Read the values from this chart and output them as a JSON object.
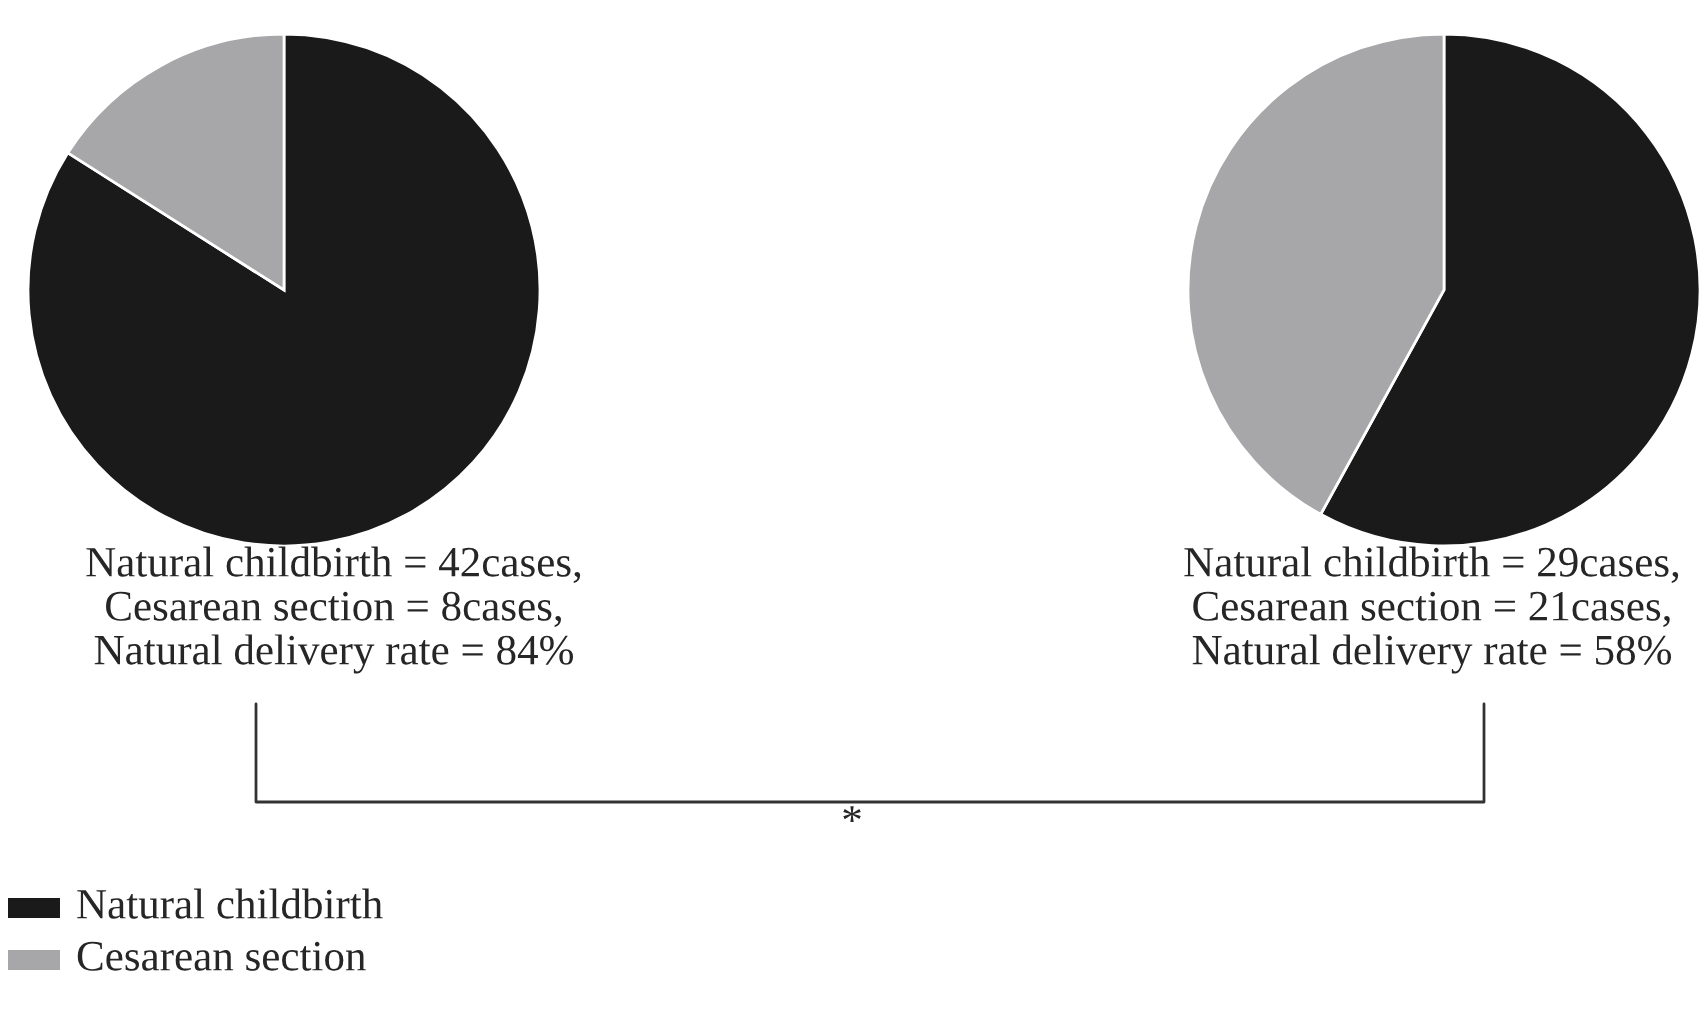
{
  "chart_data": [
    {
      "type": "pie",
      "categories": [
        "Natural childbirth",
        "Cesarean section"
      ],
      "values": [
        84,
        16
      ],
      "colors": [
        "#1a1a1a",
        "#a7a6a9"
      ],
      "legend": "bottom left",
      "annotations": [
        "Natural childbirth = 42cases,",
        "Cesarean section = 8cases,",
        "Natural delivery rate = 84%"
      ]
    },
    {
      "type": "pie",
      "categories": [
        null,
        null
      ],
      "values": [
        58,
        42
      ],
      "colors": [
        "#1a1a1a",
        "#a7a6a9"
      ],
      "annotations": [
        "Natural childbirth = 29cases,",
        "Cesarean section = 21cases,",
        "Natural delivery rate = 58%",
        "*"
      ]
    }
  ]
}
